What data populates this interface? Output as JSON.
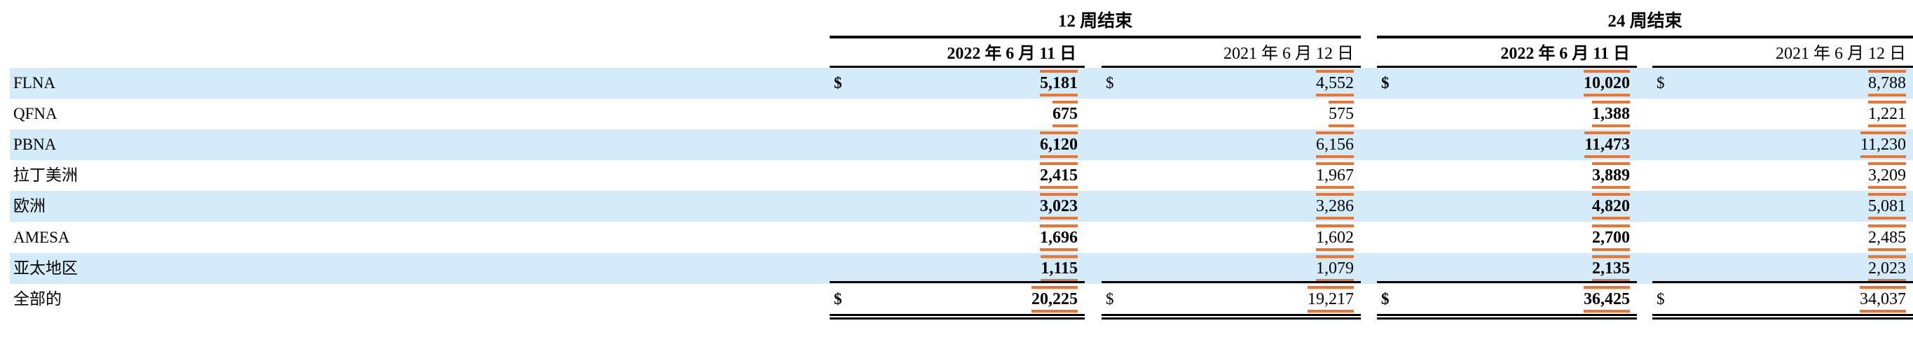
{
  "header": {
    "groups": [
      "12 周结束",
      "24 周结束"
    ],
    "columns": [
      "2022 年 6 月 11 日",
      "2021 年 6 月 12 日",
      "2022 年 6 月 11 日",
      "2021 年 6 月 12 日"
    ]
  },
  "currency_symbol": "$",
  "highlight_color": "#ed7431",
  "row_shade_color": "#d4ebf9",
  "rows": [
    {
      "label": "FLNA",
      "values": [
        "5,181",
        "4,552",
        "10,020",
        "8,788"
      ],
      "dollar": true
    },
    {
      "label": "QFNA",
      "values": [
        "675",
        "575",
        "1,388",
        "1,221"
      ],
      "dollar": false
    },
    {
      "label": "PBNA",
      "values": [
        "6,120",
        "6,156",
        "11,473",
        "11,230"
      ],
      "dollar": false
    },
    {
      "label": "拉丁美洲",
      "values": [
        "2,415",
        "1,967",
        "3,889",
        "3,209"
      ],
      "dollar": false
    },
    {
      "label": "欧洲",
      "values": [
        "3,023",
        "3,286",
        "4,820",
        "5,081"
      ],
      "dollar": false
    },
    {
      "label": "AMESA",
      "values": [
        "1,696",
        "1,602",
        "2,700",
        "2,485"
      ],
      "dollar": false
    },
    {
      "label": "亚太地区",
      "values": [
        "1,115",
        "1,079",
        "2,135",
        "2,023"
      ],
      "dollar": false
    },
    {
      "label": "全部的",
      "values": [
        "20,225",
        "19,217",
        "36,425",
        "34,037"
      ],
      "dollar": true
    }
  ]
}
